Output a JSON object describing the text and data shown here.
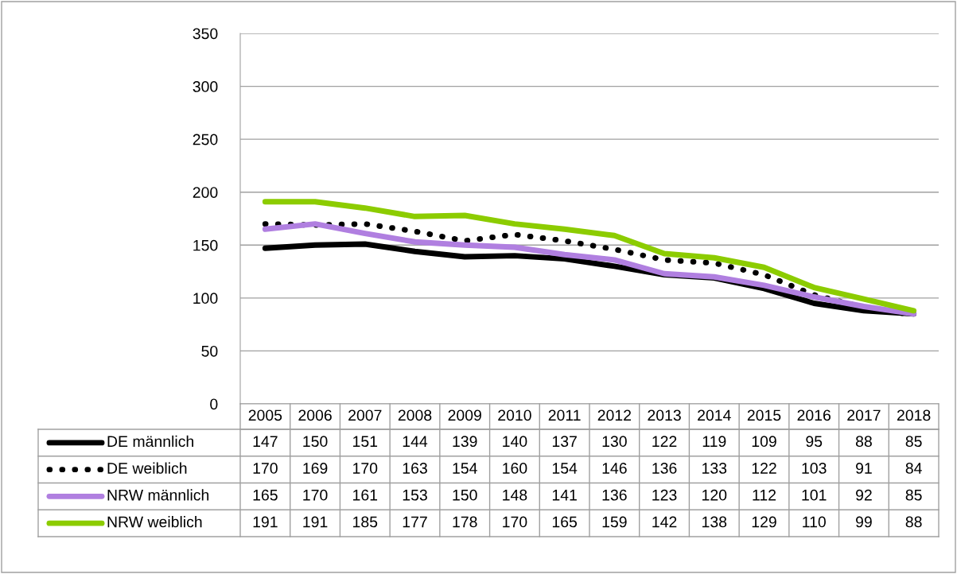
{
  "chart_data": {
    "type": "line",
    "categories": [
      "2005",
      "2006",
      "2007",
      "2008",
      "2009",
      "2010",
      "2011",
      "2012",
      "2013",
      "2014",
      "2015",
      "2016",
      "2017",
      "2018"
    ],
    "series": [
      {
        "name": "DE männlich",
        "color": "#000000",
        "line_style": "solid",
        "values": [
          147,
          150,
          151,
          144,
          139,
          140,
          137,
          130,
          122,
          119,
          109,
          95,
          88,
          85
        ]
      },
      {
        "name": "DE weiblich",
        "color": "#000000",
        "line_style": "dotted",
        "values": [
          170,
          169,
          170,
          163,
          154,
          160,
          154,
          146,
          136,
          133,
          122,
          103,
          91,
          84
        ]
      },
      {
        "name": "NRW männlich",
        "color": "#b07fe0",
        "line_style": "solid",
        "values": [
          165,
          170,
          161,
          153,
          150,
          148,
          141,
          136,
          123,
          120,
          112,
          101,
          92,
          85
        ]
      },
      {
        "name": "NRW weiblich",
        "color": "#8ccc00",
        "line_style": "solid",
        "values": [
          191,
          191,
          185,
          177,
          178,
          170,
          165,
          159,
          142,
          138,
          129,
          110,
          99,
          88
        ]
      }
    ],
    "ylim": [
      0,
      350
    ],
    "yticks": [
      0,
      50,
      100,
      150,
      200,
      250,
      300,
      350
    ],
    "grid": "y",
    "legend": "bottom",
    "tick_labels": "y",
    "data_labels": true,
    "marker": "none"
  }
}
